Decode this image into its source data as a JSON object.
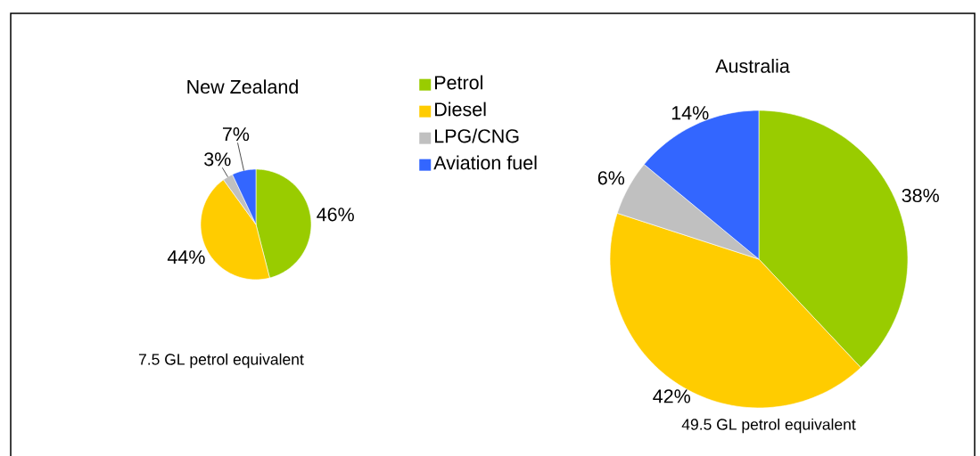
{
  "chart_data": [
    {
      "type": "pie",
      "title": "New Zealand",
      "categories": [
        "Petrol",
        "Diesel",
        "LPG/CNG",
        "Aviation fuel"
      ],
      "values": [
        46,
        44,
        3,
        7
      ],
      "colors": [
        "#99cc00",
        "#ffcc00",
        "#c0c0c0",
        "#3366ff"
      ],
      "value_labels": [
        "46%",
        "44%",
        "3%",
        "7%"
      ],
      "legend": "right",
      "annotations": [
        "7.5 GL petrol equivalent"
      ]
    },
    {
      "type": "pie",
      "title": "Australia",
      "categories": [
        null,
        null,
        null,
        null
      ],
      "values": [
        38,
        42,
        6,
        14
      ],
      "colors": [
        "#99cc00",
        "#ffcc00",
        "#c0c0c0",
        "#3366ff"
      ],
      "value_labels": [
        "38%",
        "42%",
        "6%",
        "14%"
      ],
      "annotations": [
        "49.5 GL petrol equivalent"
      ]
    }
  ]
}
